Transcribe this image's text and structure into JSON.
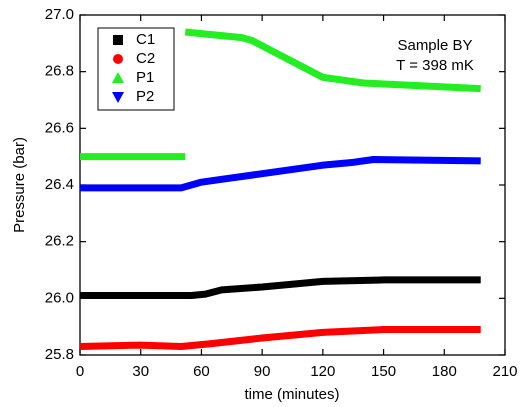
{
  "chart_data": {
    "type": "line",
    "xlabel": "time (minutes)",
    "ylabel": "Pressure (bar)",
    "annotations": [
      "Sample BY",
      "T = 398 mK"
    ],
    "xlim": [
      0,
      210
    ],
    "xticks": [
      0,
      30,
      60,
      90,
      120,
      150,
      180,
      210
    ],
    "ylim": [
      25.8,
      27.0
    ],
    "yticks": [
      25.8,
      {
        "value": 26.0,
        "label": "26.0"
      },
      26.2,
      26.4,
      26.6,
      26.8,
      {
        "value": 27.0,
        "label": "27.0"
      }
    ],
    "legend": "upper left",
    "series": [
      {
        "name": "C1",
        "color": "#000000",
        "marker": "square",
        "x": [
          0,
          30,
          55,
          62,
          70,
          90,
          120,
          150,
          198
        ],
        "values": [
          26.01,
          26.01,
          26.01,
          26.015,
          26.03,
          26.04,
          26.06,
          26.065,
          26.065
        ]
      },
      {
        "name": "C2",
        "color": "#ff0000",
        "marker": "circle",
        "x": [
          0,
          30,
          50,
          65,
          90,
          120,
          150,
          198
        ],
        "values": [
          25.83,
          25.835,
          25.83,
          25.84,
          25.86,
          25.88,
          25.89,
          25.89
        ]
      },
      {
        "name": "P1",
        "color": "#22ee22",
        "marker": "triangle-up",
        "x": [
          0,
          52,
          52,
          52,
          80,
          85,
          120,
          140,
          198
        ],
        "values": [
          26.5,
          26.5,
          null,
          26.94,
          26.92,
          26.91,
          26.78,
          26.76,
          26.74
        ]
      },
      {
        "name": "P2",
        "color": "#0000ff",
        "marker": "triangle-down",
        "x": [
          0,
          50,
          60,
          70,
          90,
          120,
          135,
          145,
          198
        ],
        "values": [
          26.39,
          26.39,
          26.41,
          26.42,
          26.44,
          26.47,
          26.48,
          26.49,
          26.485
        ]
      }
    ]
  }
}
